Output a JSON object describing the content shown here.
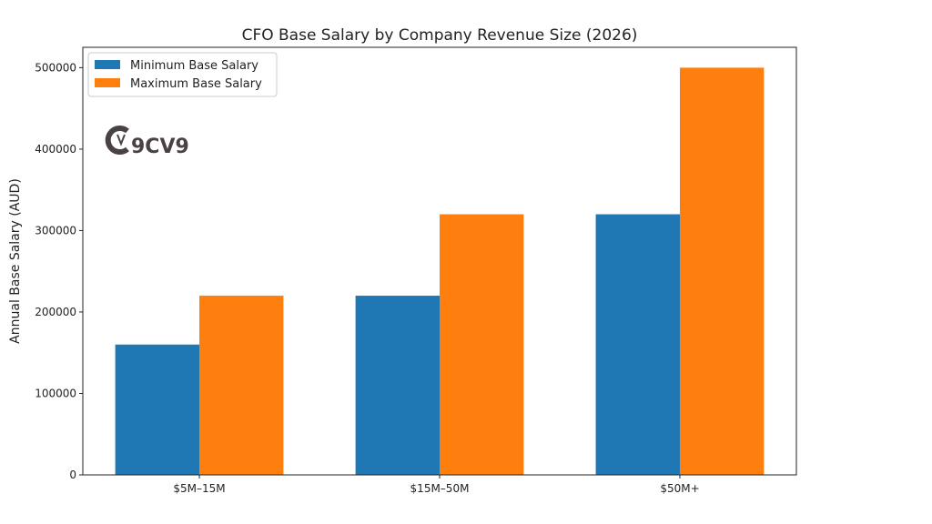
{
  "chart_data": {
    "type": "bar",
    "title": "CFO Base Salary by Company Revenue Size (2026)",
    "xlabel": "",
    "ylabel": "Annual Base Salary (AUD)",
    "categories": [
      "$5M–15M",
      "$15M–50M",
      "$50M+"
    ],
    "series": [
      {
        "name": "Minimum Base Salary",
        "values": [
          160000,
          220000,
          320000
        ],
        "color": "#1f77b4"
      },
      {
        "name": "Maximum Base Salary",
        "values": [
          220000,
          320000,
          500000
        ],
        "color": "#ff7f0e"
      }
    ],
    "ylim": [
      0,
      525000
    ],
    "yticks": [
      0,
      100000,
      200000,
      300000,
      400000,
      500000
    ],
    "grid": false,
    "legend_position": "top-left"
  },
  "watermark": {
    "text": "9CV9",
    "color": "#4a4242"
  }
}
